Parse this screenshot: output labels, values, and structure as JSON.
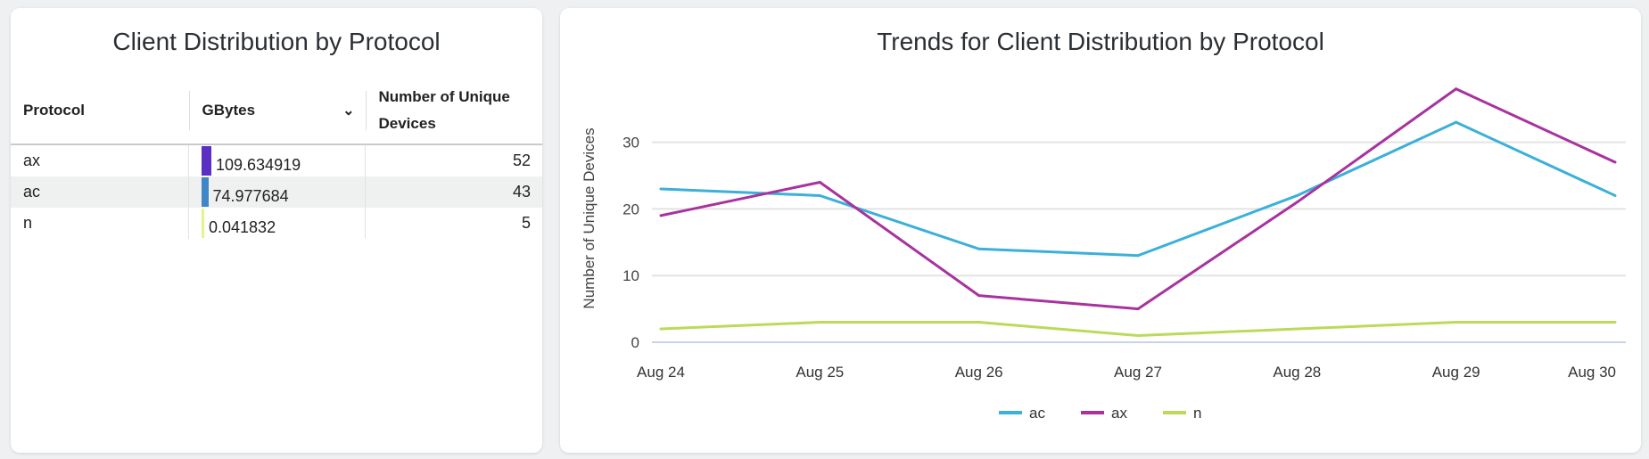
{
  "left_panel": {
    "title": "Client Distribution by Protocol",
    "columns": {
      "protocol": "Protocol",
      "gbytes": "GBytes",
      "devices": "Number of Unique Devices"
    },
    "rows": [
      {
        "protocol": "ax",
        "gbytes": "109.634919",
        "gbytes_value": 109.634919,
        "devices": "52",
        "bar_color": "#5b2fc4"
      },
      {
        "protocol": "ac",
        "gbytes": "74.977684",
        "gbytes_value": 74.977684,
        "devices": "43",
        "bar_color": "#3e86c6"
      },
      {
        "protocol": "n",
        "gbytes": "0.041832",
        "gbytes_value": 0.041832,
        "devices": "5",
        "bar_color": "#e2f58c"
      }
    ]
  },
  "chart_data": {
    "type": "line",
    "title": "Trends for Client Distribution by Protocol",
    "xlabel": "",
    "ylabel": "Number of Unique Devices",
    "categories": [
      "Aug 24",
      "Aug 25",
      "Aug 26",
      "Aug 27",
      "Aug 28",
      "Aug 29",
      "Aug 30"
    ],
    "ylim": [
      0,
      40
    ],
    "yticks": [
      0,
      10,
      20,
      30
    ],
    "grid": true,
    "legend": "bottom-center",
    "series": [
      {
        "name": "ac",
        "color": "#3bb0d8",
        "values": [
          23,
          22,
          14,
          13,
          22,
          33,
          22
        ]
      },
      {
        "name": "ax",
        "color": "#a8329e",
        "values": [
          19,
          24,
          7,
          5,
          21,
          38,
          27
        ]
      },
      {
        "name": "n",
        "color": "#bcd95a",
        "values": [
          2,
          3,
          3,
          1,
          2,
          3,
          3
        ]
      }
    ]
  }
}
